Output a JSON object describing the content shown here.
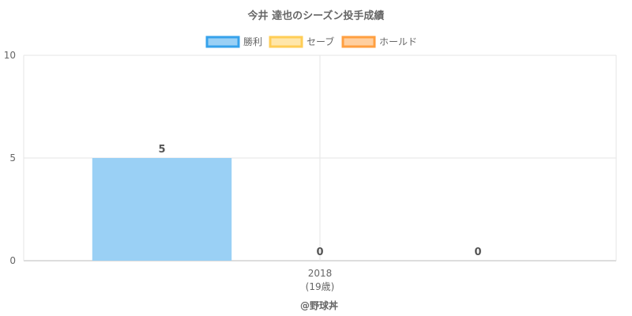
{
  "chart_data": {
    "type": "bar",
    "title": "今井 達也のシーズン投手成績",
    "categories": [
      "2018"
    ],
    "category_sublabels": [
      "(19歳)"
    ],
    "series": [
      {
        "name": "勝利",
        "values": [
          5
        ],
        "color": "#36a2eb",
        "fill": "#9ad0f5"
      },
      {
        "name": "セーブ",
        "values": [
          0
        ],
        "color": "#ffcd56",
        "fill": "#ffe6aa"
      },
      {
        "name": "ホールド",
        "values": [
          0
        ],
        "color": "#ff9f40",
        "fill": "#ffcf9f"
      }
    ],
    "ylim": [
      0,
      10
    ],
    "yticks": [
      0,
      5,
      10
    ],
    "grid": true,
    "legend": "top",
    "footer": "@野球丼"
  }
}
